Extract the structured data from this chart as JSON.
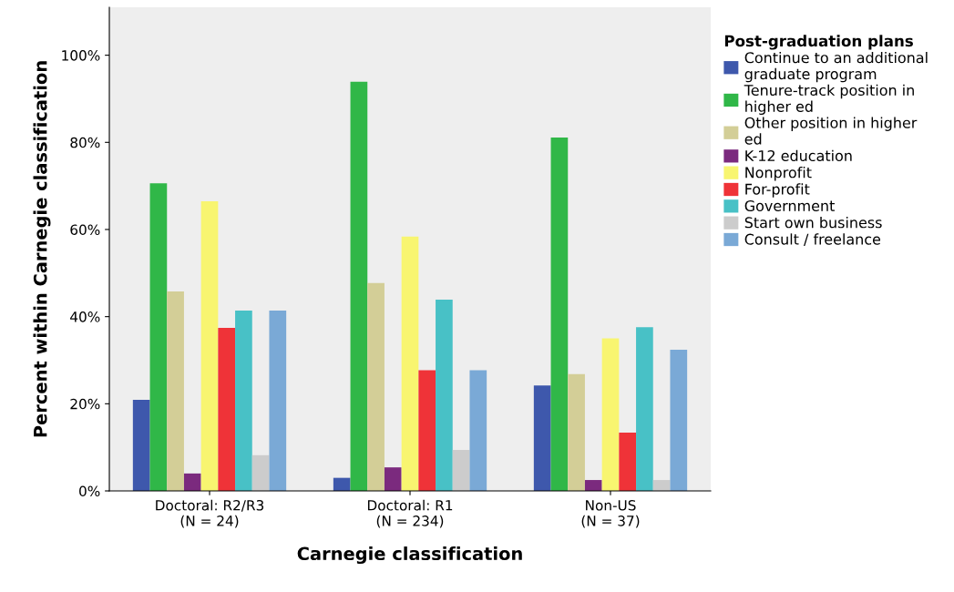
{
  "chart_data": {
    "type": "bar",
    "xlabel": "Carnegie classification",
    "ylabel": "Percent within Carnegie classification",
    "legend_title": "Post-graduation plans",
    "legend": "right",
    "categories": [
      "Doctoral: R2/R3\n(N = 24)",
      "Doctoral: R1\n(N = 234)",
      "Non-US\n(N = 37)"
    ],
    "ylim": [
      0,
      111
    ],
    "yticks": [
      {
        "value": 0,
        "label": "0%"
      },
      {
        "value": 20,
        "label": "20%"
      },
      {
        "value": 40,
        "label": "40%"
      },
      {
        "value": 60,
        "label": "60%"
      },
      {
        "value": 80,
        "label": "80%"
      },
      {
        "value": 100,
        "label": "100%"
      }
    ],
    "series": [
      {
        "name": "Continue to an additional\ngraduate program",
        "color": "#3e58ac",
        "values": [
          20.9,
          3.0,
          24.2
        ]
      },
      {
        "name": "Tenure-track position in\nhigher ed",
        "color": "#30b748",
        "values": [
          70.6,
          93.9,
          81.1
        ]
      },
      {
        "name": "Other position in higher\ned",
        "color": "#d3ce97",
        "values": [
          45.8,
          47.7,
          26.8
        ]
      },
      {
        "name": "K-12 education",
        "color": "#7b2a7e",
        "values": [
          4.0,
          5.4,
          2.5
        ]
      },
      {
        "name": "Nonprofit",
        "color": "#f8f570",
        "values": [
          66.5,
          58.4,
          35.0
        ]
      },
      {
        "name": "For-profit",
        "color": "#ef3338",
        "values": [
          37.4,
          27.7,
          13.4
        ]
      },
      {
        "name": "Government",
        "color": "#48c1c6",
        "values": [
          41.4,
          43.9,
          37.6
        ]
      },
      {
        "name": "Start own business",
        "color": "#cccccc",
        "values": [
          8.2,
          9.4,
          2.5
        ]
      },
      {
        "name": "Consult / freelance",
        "color": "#7aa9d6",
        "values": [
          41.4,
          27.7,
          32.4
        ]
      }
    ]
  }
}
